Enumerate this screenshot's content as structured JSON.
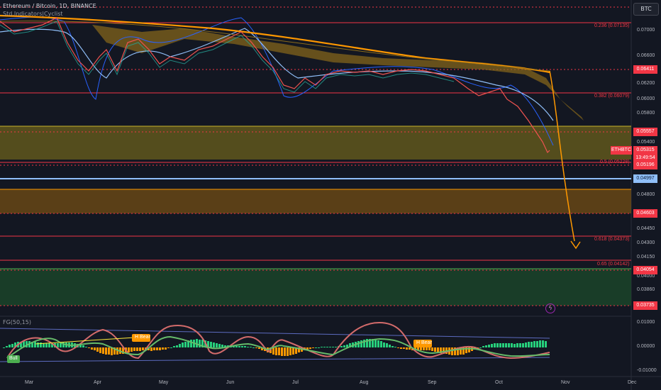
{
  "header": {
    "symbol": "Ethereum / Bitcoin, 1D, BINANCE",
    "indicator": "Std.Indicators|Cyclist"
  },
  "currency_button": "BTC",
  "oscillator": {
    "label": "FG(50,15)",
    "ticks": [
      "0.01000",
      "0.00000",
      "-0.01000"
    ],
    "signals": [
      "H Bear",
      "H Bear",
      "Bull"
    ]
  },
  "price_axis": {
    "ticks": [
      "0.07000",
      "0.06600",
      "0.06200",
      "0.06000",
      "0.05800",
      "0.05400",
      "0.04800",
      "0.04450",
      "0.04300",
      "0.04150",
      "0.04000",
      "0.03860"
    ],
    "top_tick": "0.06600"
  },
  "time_axis": [
    "Mar",
    "Apr",
    "May",
    "Jun",
    "Jul",
    "Aug",
    "Sep",
    "Oct",
    "Nov",
    "Dec"
  ],
  "levels": [
    {
      "label": "0.06411",
      "color": "#f23645"
    },
    {
      "label": "0.05557",
      "color": "#f23645"
    },
    {
      "label": "0.05196",
      "color": "#f23645"
    },
    {
      "label": "0.04997",
      "color": "#2962ff"
    },
    {
      "label": "0.04603",
      "color": "#f23645"
    },
    {
      "label": "0.04054",
      "color": "#f23645"
    },
    {
      "label": "0.03735",
      "color": "#f23645"
    }
  ],
  "fib_labels": [
    "0.236 (0.07135)",
    "0.382 (0.06079)",
    "0.5 (0.05228)",
    "0.618 (0.04373)",
    "0.65 (0.04142)"
  ],
  "current": {
    "symbol": "ETHBTC",
    "price": "0.05315",
    "countdown": "13:49:54"
  },
  "colors": {
    "bg": "#131722",
    "up": "#26a69a",
    "down": "#ef5350",
    "red_line": "#f23645",
    "orange": "#ff9800",
    "yellow_zone": "#ffeb3b",
    "green_zone": "#4caf50",
    "blue_line": "#90bff9"
  },
  "icons": [
    "flash-icon"
  ]
}
